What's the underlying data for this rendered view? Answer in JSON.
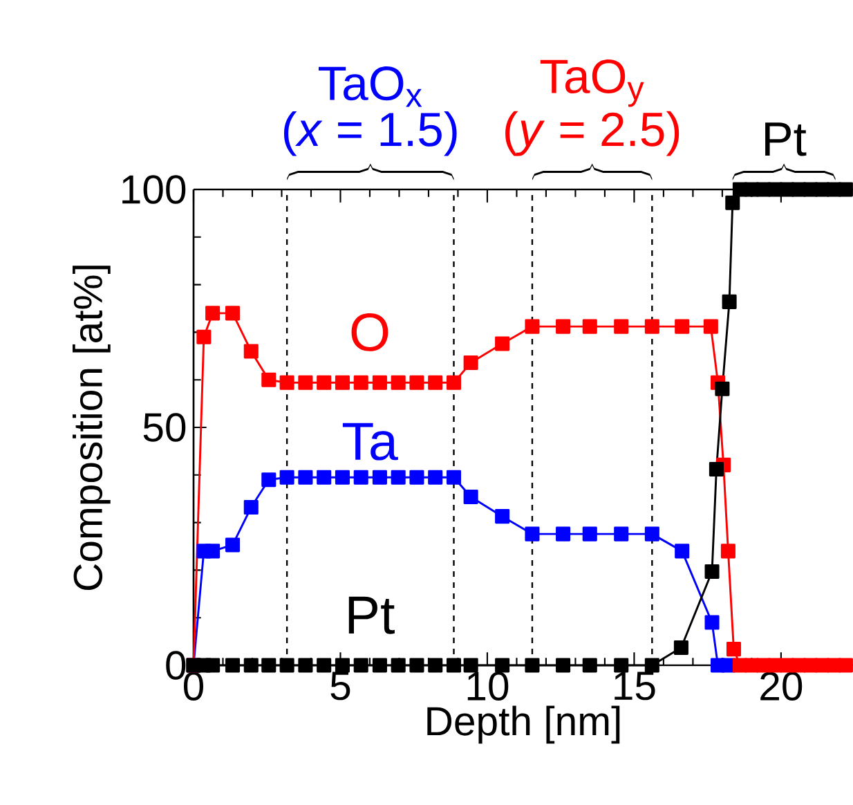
{
  "chart_data": {
    "type": "line",
    "xlabel": "Depth [nm]",
    "ylabel": "Composition [at%]",
    "xlim": [
      0,
      22.45
    ],
    "ylim": [
      0,
      100
    ],
    "xticks": [
      0,
      5,
      10,
      15,
      20
    ],
    "yticks": [
      0,
      50,
      100
    ],
    "grid": false,
    "marker": "square",
    "line_style": "solid",
    "series": [
      {
        "name": "Ta",
        "color": "#0000ff",
        "x": [
          0,
          0.35,
          0.65,
          1.33,
          1.96,
          2.56,
          3.18,
          3.81,
          4.44,
          5.07,
          5.7,
          6.34,
          6.97,
          7.6,
          8.23,
          8.86,
          9.44,
          10.51,
          11.53,
          12.58,
          13.49,
          14.56,
          15.61,
          16.63,
          17.65,
          17.85,
          18.2
        ],
        "values": [
          0,
          24,
          24,
          25.3,
          33.2,
          39,
          39.5,
          39.5,
          39.5,
          39.5,
          39.5,
          39.5,
          39.5,
          39.5,
          39.5,
          39.5,
          35.4,
          31.3,
          27.6,
          27.6,
          27.6,
          27.6,
          27.6,
          24,
          9,
          0,
          0
        ]
      },
      {
        "name": "O",
        "color": "#ff0000",
        "x": [
          0,
          0.35,
          0.65,
          1.33,
          1.96,
          2.56,
          3.18,
          3.81,
          4.44,
          5.07,
          5.7,
          6.34,
          6.97,
          7.6,
          8.23,
          8.86,
          9.44,
          10.51,
          11.53,
          12.58,
          13.49,
          14.56,
          15.61,
          16.63,
          17.61,
          17.85,
          18.04,
          18.2,
          18.39,
          18.6,
          19.0,
          19.4,
          19.8,
          20.2,
          20.6,
          21.0,
          21.4,
          21.8,
          22.2
        ],
        "values": [
          0,
          69,
          74,
          74,
          66,
          60,
          59.4,
          59.4,
          59.4,
          59.4,
          59.4,
          59.4,
          59.4,
          59.4,
          59.4,
          59.4,
          63.6,
          67.6,
          71.2,
          71.2,
          71.2,
          71.2,
          71.2,
          71.2,
          71.2,
          59.4,
          42.1,
          24,
          3.4,
          0,
          0,
          0,
          0,
          0,
          0,
          0,
          0,
          0,
          0
        ]
      },
      {
        "name": "Pt",
        "color": "#000000",
        "x": [
          0,
          0.35,
          0.65,
          1.33,
          1.96,
          2.56,
          3.18,
          3.81,
          4.44,
          5.07,
          5.7,
          6.34,
          6.97,
          7.6,
          8.23,
          8.86,
          9.44,
          10.51,
          11.53,
          12.58,
          13.49,
          14.56,
          15.61,
          16.6,
          17.65,
          17.8,
          18.0,
          18.24,
          18.35,
          18.6,
          19.0,
          19.4,
          19.8,
          20.2,
          20.6,
          21.0,
          21.4,
          21.8,
          22.2
        ],
        "values": [
          0,
          0,
          0,
          0,
          0,
          0,
          0,
          0,
          0,
          0,
          0,
          0,
          0,
          0,
          0,
          0,
          0,
          0,
          0,
          0,
          0,
          0,
          0,
          3.7,
          19.7,
          41.2,
          58.1,
          76.4,
          97.2,
          100,
          100,
          100,
          100,
          100,
          100,
          100,
          100,
          100,
          100
        ]
      }
    ],
    "ref_lines": [
      {
        "axis": "x",
        "value": 3.18,
        "color": "#000000",
        "line_style": "dashed"
      },
      {
        "axis": "x",
        "value": 8.86,
        "color": "#000000",
        "line_style": "dashed"
      },
      {
        "axis": "x",
        "value": 11.53,
        "color": "#000000",
        "line_style": "dashed"
      },
      {
        "axis": "x",
        "value": 15.61,
        "color": "#000000",
        "line_style": "dashed"
      }
    ],
    "annotations": [
      "TaO$_{x}$",
      "(*x* = 1.5)",
      "TaO$_{y}$",
      "(*y* = 2.5)",
      "Pt"
    ]
  }
}
